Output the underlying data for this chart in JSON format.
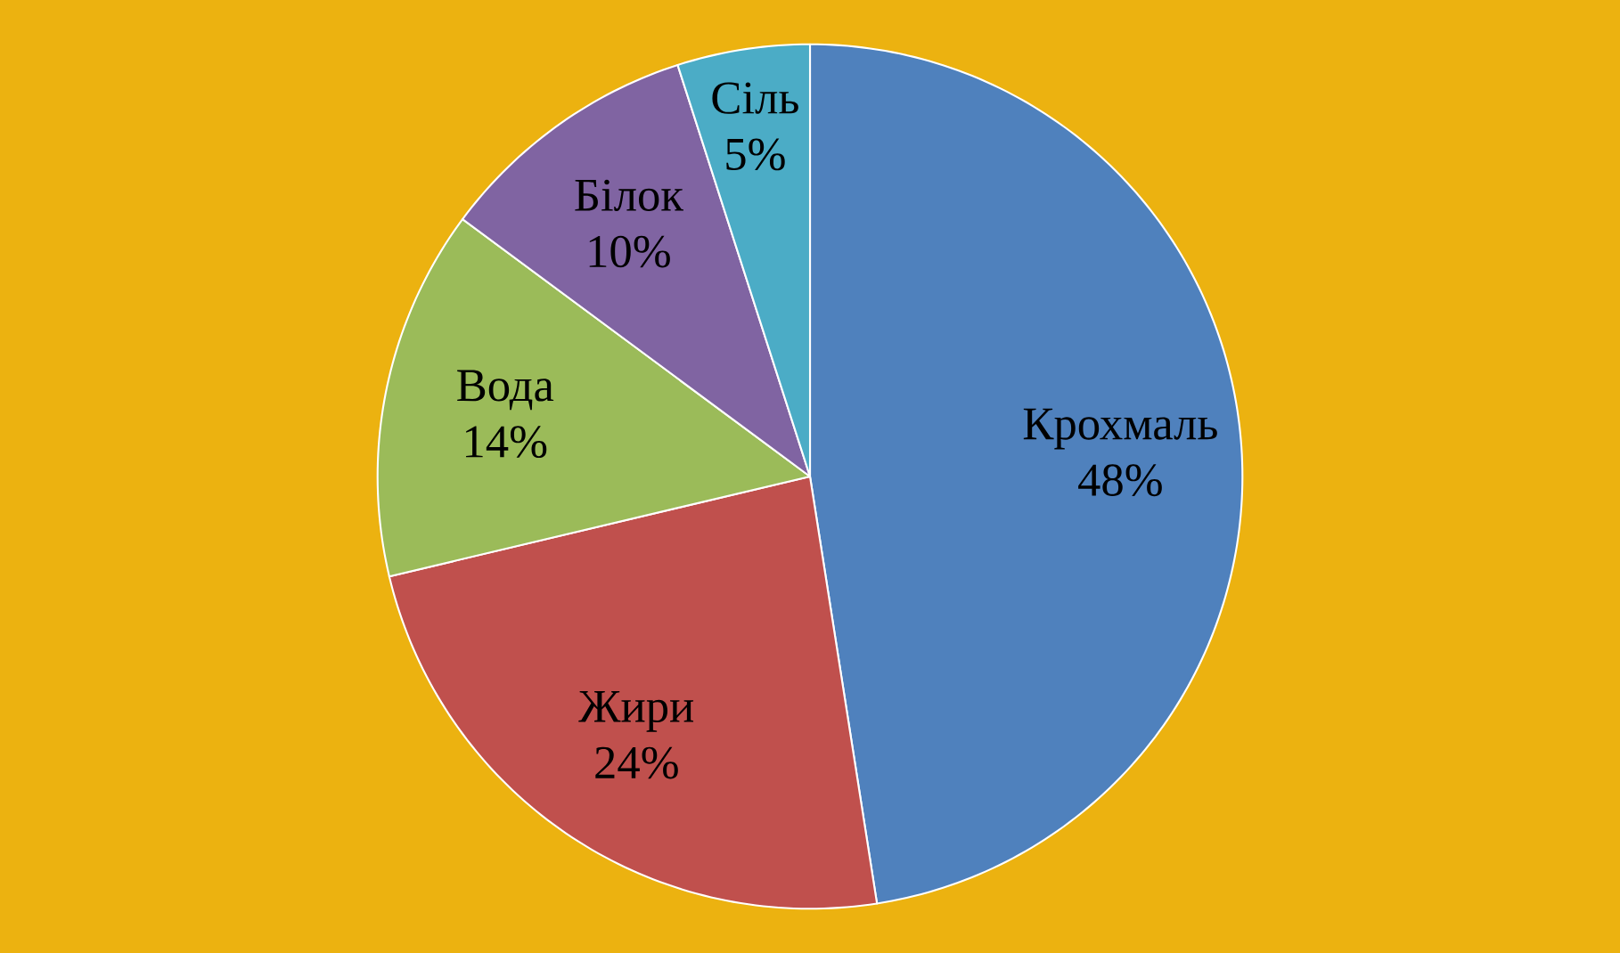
{
  "chart_data": {
    "type": "pie",
    "categories": [
      "Крохмаль",
      "Жири",
      "Вода",
      "Білок",
      "Сіль"
    ],
    "values": [
      48,
      24,
      14,
      10,
      5
    ],
    "value_labels": [
      "48%",
      "24%",
      "14%",
      "10%",
      "5%"
    ],
    "colors": [
      "#4f81bd",
      "#c0504d",
      "#9bbb59",
      "#8064a2",
      "#4bacc6"
    ]
  }
}
